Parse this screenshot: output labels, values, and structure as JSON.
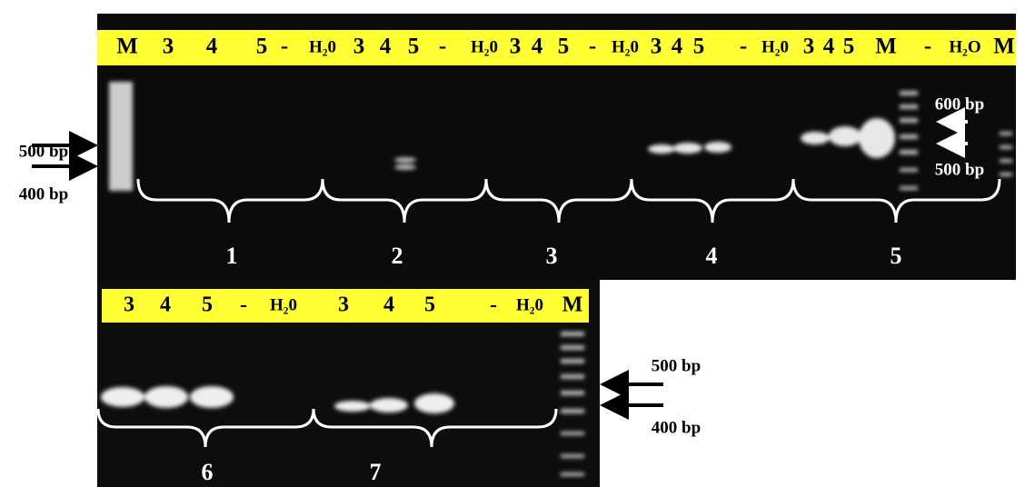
{
  "top_gel": {
    "lanes": [
      "M",
      "3",
      "4",
      "5",
      "-",
      "H₂0",
      "3",
      "4",
      "5",
      "-",
      "H₂0",
      "3",
      "4",
      "5",
      "-",
      "H₂0",
      "3",
      "4",
      "5",
      "-",
      "H₂0",
      "3",
      "4",
      "5",
      "M",
      "-",
      "H₂O",
      "M"
    ],
    "left_markers": [
      "500 bp",
      "400 bp"
    ],
    "right_markers": [
      "600 bp",
      "500 bp"
    ],
    "groups": [
      "1",
      "2",
      "3",
      "4",
      "5"
    ]
  },
  "bottom_gel": {
    "lanes": [
      "3",
      "4",
      "5",
      "-",
      "H₂0",
      "3",
      "4",
      "5",
      "-",
      "H₂0",
      "M"
    ],
    "markers": [
      "500 bp",
      "400 bp"
    ],
    "groups": [
      "6",
      "7"
    ]
  }
}
